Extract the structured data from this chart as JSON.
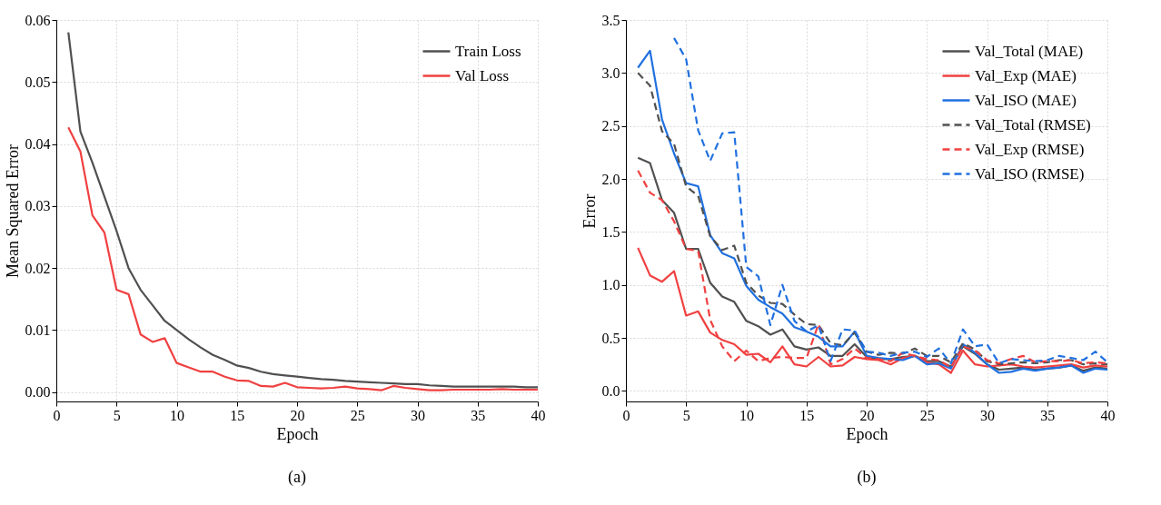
{
  "chart_data": [
    {
      "type": "line",
      "xlabel": "Epoch",
      "ylabel": "Mean Squared Error",
      "annotations": [
        "(a)"
      ],
      "legend": "top right",
      "grid": true,
      "line_style": "solid",
      "x": [
        1,
        2,
        3,
        4,
        5,
        6,
        7,
        8,
        9,
        10,
        11,
        12,
        13,
        14,
        15,
        16,
        17,
        18,
        19,
        20,
        21,
        22,
        23,
        24,
        25,
        26,
        27,
        28,
        29,
        30,
        31,
        32,
        33,
        34,
        35,
        36,
        37,
        38,
        39,
        40
      ],
      "xlim": [
        0,
        40
      ],
      "xticks": [
        0,
        5,
        10,
        15,
        20,
        25,
        30,
        35,
        40
      ],
      "ylim": [
        -0.0015,
        0.06
      ],
      "yticks": [
        {
          "value": 0,
          "label": "0.00"
        },
        {
          "value": 0.01,
          "label": "0.01"
        },
        {
          "value": 0.02,
          "label": "0.02"
        },
        {
          "value": 0.03,
          "label": "0.03"
        },
        {
          "value": 0.04,
          "label": "0.04"
        },
        {
          "value": 0.05,
          "label": "0.05"
        },
        {
          "value": 0.06,
          "label": "0.06"
        }
      ],
      "series": [
        {
          "name": "Train Loss",
          "color": "#505050",
          "values": [
            0.058,
            0.042,
            0.037,
            0.0315,
            0.026,
            0.02,
            0.0165,
            0.014,
            0.0115,
            0.01,
            0.0085,
            0.0072,
            0.006,
            0.0052,
            0.0043,
            0.0039,
            0.0033,
            0.0029,
            0.0027,
            0.0025,
            0.0023,
            0.0021,
            0.002,
            0.0018,
            0.0017,
            0.0016,
            0.0015,
            0.0014,
            0.0013,
            0.0013,
            0.0011,
            0.001,
            0.0009,
            0.0009,
            0.0009,
            0.0009,
            0.0009,
            0.0009,
            0.0008,
            0.0008
          ]
        },
        {
          "name": "Val Loss",
          "color": "#f04040",
          "values": [
            0.0427,
            0.0388,
            0.0285,
            0.0257,
            0.0165,
            0.0158,
            0.0093,
            0.0081,
            0.0087,
            0.0047,
            0.004,
            0.0033,
            0.0033,
            0.0025,
            0.0019,
            0.0018,
            0.001,
            0.0009,
            0.0015,
            0.0008,
            0.0007,
            0.0006,
            0.0007,
            0.0009,
            0.0006,
            0.0005,
            0.0003,
            0.001,
            0.0007,
            0.0005,
            0.0003,
            0.0003,
            0.0004,
            0.0004,
            0.0004,
            0.0004,
            0.0005,
            0.0004,
            0.0004,
            0.0004
          ]
        }
      ]
    },
    {
      "type": "line",
      "xlabel": "Epoch",
      "ylabel": "Error",
      "annotations": [
        "(b)"
      ],
      "legend": "top right",
      "grid": true,
      "x": [
        1,
        2,
        3,
        4,
        5,
        6,
        7,
        8,
        9,
        10,
        11,
        12,
        13,
        14,
        15,
        16,
        17,
        18,
        19,
        20,
        21,
        22,
        23,
        24,
        25,
        26,
        27,
        28,
        29,
        30,
        31,
        32,
        33,
        34,
        35,
        36,
        37,
        38,
        39,
        40
      ],
      "xlim": [
        0,
        40
      ],
      "xticks": [
        0,
        5,
        10,
        15,
        20,
        25,
        30,
        35,
        40
      ],
      "ylim": [
        -0.1,
        3.5
      ],
      "yticks": [
        {
          "value": 0,
          "label": "0.0"
        },
        {
          "value": 0.5,
          "label": "0.5"
        },
        {
          "value": 1,
          "label": "1.0"
        },
        {
          "value": 1.5,
          "label": "1.5"
        },
        {
          "value": 2,
          "label": "2.0"
        },
        {
          "value": 2.5,
          "label": "2.5"
        },
        {
          "value": 3,
          "label": "3.0"
        },
        {
          "value": 3.5,
          "label": "3.5"
        }
      ],
      "series": [
        {
          "name": "Val_Total (MAE)",
          "color": "#505050",
          "line_style": "solid",
          "values": [
            2.2,
            2.15,
            1.8,
            1.68,
            1.34,
            1.34,
            1.02,
            0.89,
            0.84,
            0.66,
            0.61,
            0.53,
            0.58,
            0.42,
            0.39,
            0.41,
            0.33,
            0.33,
            0.44,
            0.32,
            0.3,
            0.3,
            0.32,
            0.33,
            0.28,
            0.28,
            0.23,
            0.42,
            0.35,
            0.25,
            0.2,
            0.21,
            0.22,
            0.2,
            0.21,
            0.22,
            0.24,
            0.19,
            0.22,
            0.21
          ]
        },
        {
          "name": "Val_Exp (MAE)",
          "color": "#f04040",
          "line_style": "solid",
          "values": [
            1.35,
            1.09,
            1.03,
            1.13,
            0.71,
            0.75,
            0.55,
            0.48,
            0.44,
            0.34,
            0.35,
            0.27,
            0.42,
            0.25,
            0.23,
            0.32,
            0.23,
            0.24,
            0.32,
            0.3,
            0.29,
            0.25,
            0.31,
            0.33,
            0.27,
            0.25,
            0.17,
            0.38,
            0.25,
            0.23,
            0.24,
            0.25,
            0.23,
            0.22,
            0.23,
            0.24,
            0.25,
            0.22,
            0.24,
            0.23
          ]
        },
        {
          "name": "Val_ISO (MAE)",
          "color": "#2070e0",
          "line_style": "solid",
          "values": [
            3.05,
            3.21,
            2.56,
            2.24,
            1.96,
            1.93,
            1.47,
            1.3,
            1.25,
            0.99,
            0.86,
            0.79,
            0.73,
            0.6,
            0.56,
            0.51,
            0.42,
            0.42,
            0.56,
            0.33,
            0.31,
            0.3,
            0.29,
            0.33,
            0.25,
            0.26,
            0.21,
            0.44,
            0.36,
            0.25,
            0.17,
            0.18,
            0.21,
            0.19,
            0.21,
            0.22,
            0.24,
            0.17,
            0.21,
            0.2
          ]
        },
        {
          "name": "Val_Total (RMSE)",
          "color": "#505050",
          "line_style": "dashed",
          "values": [
            3.0,
            2.88,
            2.45,
            2.33,
            1.93,
            1.84,
            1.46,
            1.33,
            1.37,
            1.02,
            0.9,
            0.83,
            0.82,
            0.72,
            0.63,
            0.62,
            0.45,
            0.43,
            0.55,
            0.37,
            0.34,
            0.36,
            0.35,
            0.4,
            0.33,
            0.33,
            0.27,
            0.45,
            0.39,
            0.28,
            0.25,
            0.26,
            0.27,
            0.26,
            0.27,
            0.29,
            0.29,
            0.25,
            0.26,
            0.25
          ]
        },
        {
          "name": "Val_Exp (RMSE)",
          "color": "#f04040",
          "line_style": "dashed",
          "values": [
            2.08,
            1.87,
            1.8,
            1.6,
            1.34,
            1.32,
            0.67,
            0.42,
            0.28,
            0.38,
            0.28,
            0.31,
            0.32,
            0.31,
            0.31,
            0.63,
            0.25,
            0.3,
            0.4,
            0.31,
            0.3,
            0.28,
            0.36,
            0.33,
            0.3,
            0.29,
            0.22,
            0.42,
            0.38,
            0.29,
            0.26,
            0.3,
            0.33,
            0.27,
            0.28,
            0.28,
            0.29,
            0.26,
            0.27,
            0.26
          ]
        },
        {
          "name": "Val_ISO (RMSE)",
          "color": "#2070e0",
          "line_style": "dashed",
          "values": [
            null,
            null,
            null,
            3.33,
            3.13,
            2.46,
            2.17,
            2.43,
            2.44,
            1.17,
            1.08,
            0.62,
            1.0,
            0.66,
            0.56,
            0.62,
            0.28,
            0.58,
            0.57,
            0.37,
            0.36,
            0.33,
            0.36,
            0.37,
            0.32,
            0.4,
            0.26,
            0.58,
            0.42,
            0.44,
            0.26,
            0.3,
            0.29,
            0.28,
            0.29,
            0.33,
            0.31,
            0.29,
            0.37,
            0.27
          ]
        }
      ]
    }
  ]
}
